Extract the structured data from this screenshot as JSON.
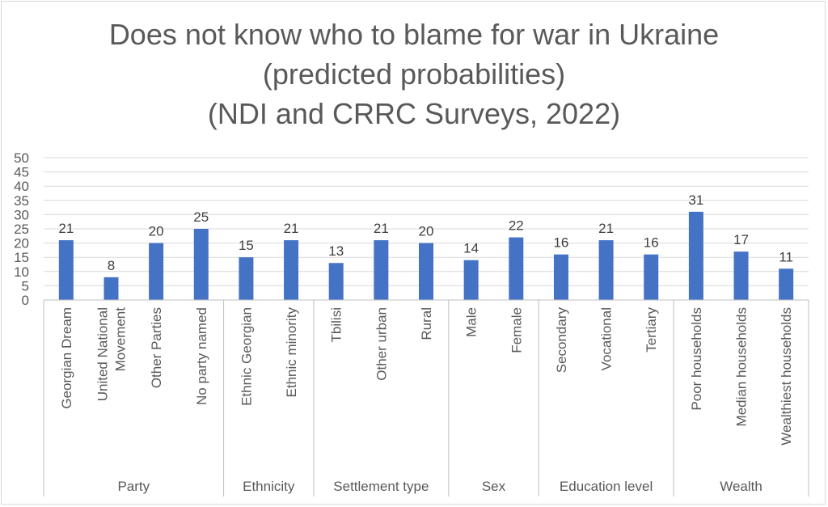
{
  "chart_data": {
    "type": "bar",
    "title": [
      "Does not know who to blame for war in Ukraine",
      "(predicted probabilities)",
      "(NDI and CRRC Surveys, 2022)"
    ],
    "xlabel": "",
    "ylabel": "",
    "ylim": [
      0,
      50
    ],
    "yticks": [
      0,
      5,
      10,
      15,
      20,
      25,
      30,
      35,
      40,
      45,
      50
    ],
    "grid": true,
    "legend": "none",
    "bar_color": "#4472c4",
    "groups": [
      {
        "name": "Party",
        "categories": [
          {
            "label": [
              "Georgian Dream"
            ],
            "value": 21
          },
          {
            "label": [
              "United National",
              "Movement"
            ],
            "value": 8
          },
          {
            "label": [
              "Other Parties"
            ],
            "value": 20
          },
          {
            "label": [
              "No party named"
            ],
            "value": 25
          }
        ]
      },
      {
        "name": "Ethnicity",
        "categories": [
          {
            "label": [
              "Ethnic Georgian"
            ],
            "value": 15
          },
          {
            "label": [
              "Ethnic minority"
            ],
            "value": 21
          }
        ]
      },
      {
        "name": "Settlement type",
        "categories": [
          {
            "label": [
              "Tbilisi"
            ],
            "value": 13
          },
          {
            "label": [
              "Other urban"
            ],
            "value": 21
          },
          {
            "label": [
              "Rural"
            ],
            "value": 20
          }
        ]
      },
      {
        "name": "Sex",
        "categories": [
          {
            "label": [
              "Male"
            ],
            "value": 14
          },
          {
            "label": [
              "Female"
            ],
            "value": 22
          }
        ]
      },
      {
        "name": "Education level",
        "categories": [
          {
            "label": [
              "Secondary"
            ],
            "value": 16
          },
          {
            "label": [
              "Vocational"
            ],
            "value": 21
          },
          {
            "label": [
              "Tertiary"
            ],
            "value": 16
          }
        ]
      },
      {
        "name": "Wealth",
        "categories": [
          {
            "label": [
              "Poor households"
            ],
            "value": 31
          },
          {
            "label": [
              "Median households"
            ],
            "value": 17
          },
          {
            "label": [
              "Wealthiest households"
            ],
            "value": 11
          }
        ]
      }
    ]
  }
}
